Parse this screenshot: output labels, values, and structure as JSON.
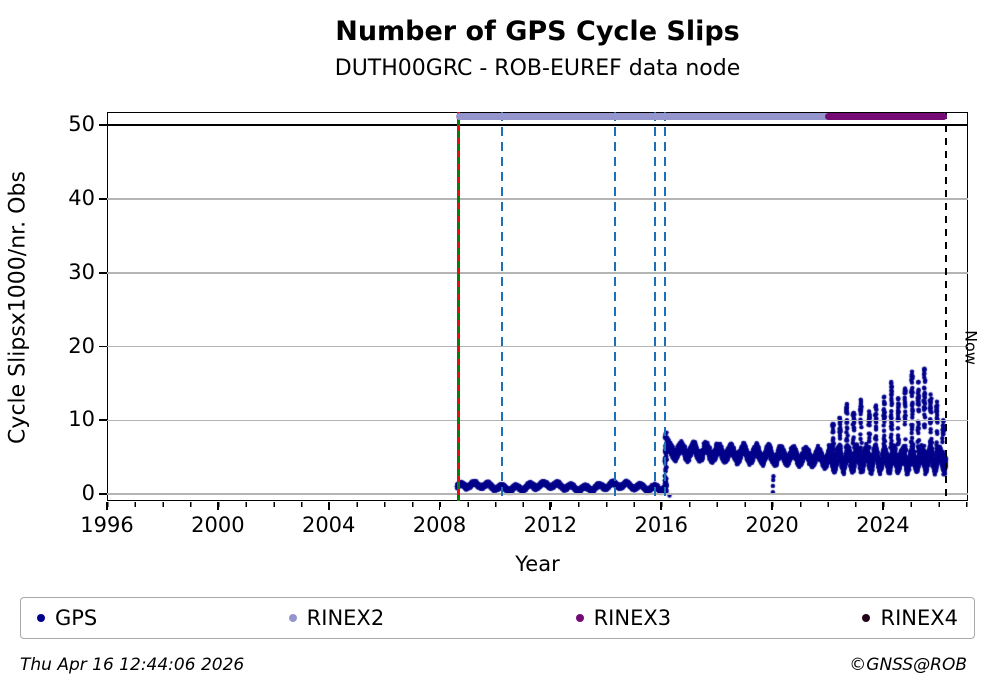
{
  "title": "Number of GPS Cycle Slips",
  "subtitle": "DUTH00GRC - ROB-EUREF data node",
  "footer": {
    "timestamp": "Thu Apr 16 12:44:06 2026",
    "credit": "©GNSS@ROB"
  },
  "legend": {
    "items": [
      {
        "label": "GPS",
        "color": "#00008b"
      },
      {
        "label": "RINEX2",
        "color": "#9595ce"
      },
      {
        "label": "RINEX3",
        "color": "#750a75"
      },
      {
        "label": "RINEX4",
        "color": "#230318"
      }
    ]
  },
  "chart_data": {
    "type": "scatter",
    "title": "Number of GPS Cycle Slips",
    "subtitle": "DUTH00GRC - ROB-EUREF data node",
    "xlabel": "Year",
    "ylabel": "Cycle Slipsx1000/nr. Obs",
    "xlim": [
      1996,
      2027.07
    ],
    "ylim": [
      -0.95,
      51.8
    ],
    "xticks": [
      1996,
      2000,
      2004,
      2008,
      2012,
      2016,
      2020,
      2024
    ],
    "x_minor_step": 1,
    "yticks": [
      0,
      10,
      20,
      30,
      40,
      50
    ],
    "grid": "horizontal",
    "grid_color": "#b4b4b4",
    "cap_line_y": 50,
    "now_line": {
      "x": 2026.28,
      "label": "Now",
      "color": "#000000",
      "style": "dashed"
    },
    "event_lines": [
      {
        "x": 2008.67,
        "style": "solid-with-dashes",
        "color": "#067d06",
        "dash_color": "#e01010"
      },
      {
        "x": 2010.26,
        "style": "dashed",
        "color": "#1d6fb8"
      },
      {
        "x": 2014.33,
        "style": "dashed",
        "color": "#1d6fb8"
      },
      {
        "x": 2015.78,
        "style": "dashed",
        "color": "#1d6fb8"
      },
      {
        "x": 2016.14,
        "style": "dashed",
        "color": "#1d6fb8"
      }
    ],
    "availability_bars": [
      {
        "name": "RINEX2",
        "start": 2008.6,
        "end": 2026.33,
        "color": "#9595ce",
        "y_value": 51.2
      },
      {
        "name": "RINEX3",
        "start": 2021.9,
        "end": 2026.33,
        "color": "#750a75",
        "y_value": 51.2
      }
    ],
    "series": [
      {
        "name": "GPS",
        "color": "#00008b",
        "marker_px": 4.4,
        "segments": [
          {
            "label": "rinex2-low-period",
            "t_start": 2008.63,
            "t_end": 2016.1,
            "level": 1.0,
            "range": [
              0.2,
              3.2
            ],
            "slow_amp": 0.25,
            "slow_period": 2.6,
            "wave_amp": 0.3,
            "wave_period": 0.5,
            "noise": 0.26,
            "pts_per_year": 430
          },
          {
            "label": "step-up-transition",
            "t_start": 2016.12,
            "t_end": 2016.22,
            "spread": [
              0.3,
              8.6
            ],
            "pts": 46
          },
          {
            "label": "mid-period",
            "t_start": 2016.16,
            "t_end": 2022.0,
            "level_start": 5.9,
            "level_end": 4.9,
            "range": [
              2.3,
              9.4
            ],
            "wave_amp": 0.7,
            "wave_period": 0.45,
            "noise": 0.65,
            "pts_per_year": 440
          },
          {
            "label": "noisy-recent-period",
            "t_start": 2022.0,
            "t_end": 2026.28,
            "level": 4.7,
            "range": [
              2.6,
              17.2
            ],
            "wave_amp": 1.1,
            "wave_period": 0.33,
            "noise": 0.8,
            "pts_per_year": 460,
            "spikes": [
              [
                2022.2,
                9.5
              ],
              [
                2022.45,
                10.3
              ],
              [
                2022.7,
                12.2
              ],
              [
                2022.95,
                11.0
              ],
              [
                2023.2,
                12.8
              ],
              [
                2023.5,
                11.2
              ],
              [
                2023.75,
                12.0
              ],
              [
                2024.05,
                13.2
              ],
              [
                2024.3,
                15.2
              ],
              [
                2024.55,
                13.0
              ],
              [
                2024.8,
                14.3
              ],
              [
                2025.05,
                16.6
              ],
              [
                2025.28,
                15.2
              ],
              [
                2025.5,
                17.0
              ],
              [
                2025.72,
                13.5
              ],
              [
                2025.95,
                12.5
              ],
              [
                2026.18,
                10.0
              ]
            ]
          }
        ],
        "outliers": [
          [
            2016.3,
            -0.2
          ],
          [
            2020.03,
            0.25
          ],
          [
            2020.03,
            1.1
          ],
          [
            2020.04,
            1.9
          ],
          [
            2020.05,
            2.4
          ]
        ]
      }
    ]
  }
}
